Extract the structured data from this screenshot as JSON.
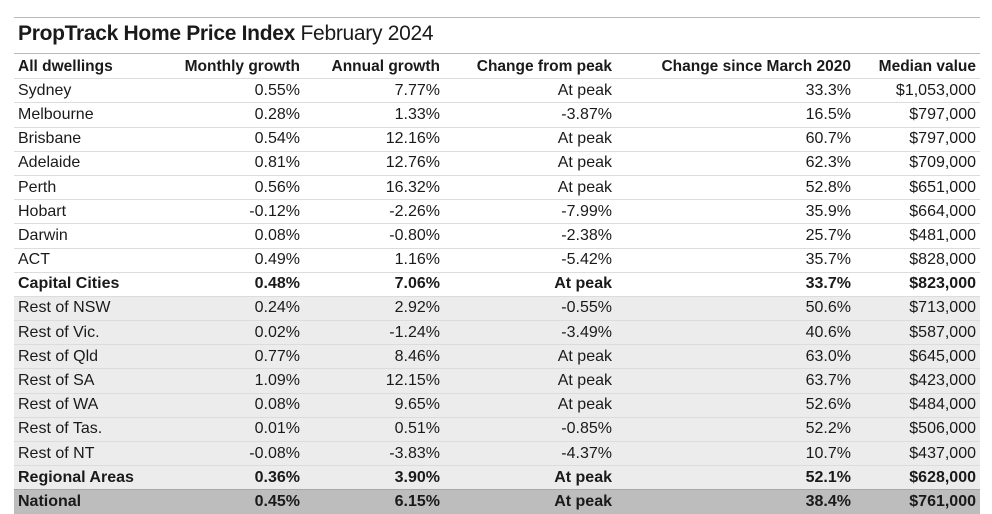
{
  "title": {
    "bold": "PropTrack Home Price Index",
    "light": "February 2024"
  },
  "headers": [
    "All dwellings",
    "Monthly growth",
    "Annual growth",
    "Change from peak",
    "Change since March 2020",
    "Median value"
  ],
  "rows": [
    {
      "name": "Sydney",
      "monthly": "0.55%",
      "annual": "7.77%",
      "peak": "At peak",
      "since2020": "33.3%",
      "median": "$1,053,000",
      "style": "normal"
    },
    {
      "name": "Melbourne",
      "monthly": "0.28%",
      "annual": "1.33%",
      "peak": "-3.87%",
      "since2020": "16.5%",
      "median": "$797,000",
      "style": "normal"
    },
    {
      "name": "Brisbane",
      "monthly": "0.54%",
      "annual": "12.16%",
      "peak": "At peak",
      "since2020": "60.7%",
      "median": "$797,000",
      "style": "normal"
    },
    {
      "name": "Adelaide",
      "monthly": "0.81%",
      "annual": "12.76%",
      "peak": "At peak",
      "since2020": "62.3%",
      "median": "$709,000",
      "style": "normal"
    },
    {
      "name": "Perth",
      "monthly": "0.56%",
      "annual": "16.32%",
      "peak": "At peak",
      "since2020": "52.8%",
      "median": "$651,000",
      "style": "normal"
    },
    {
      "name": "Hobart",
      "monthly": "-0.12%",
      "annual": "-2.26%",
      "peak": "-7.99%",
      "since2020": "35.9%",
      "median": "$664,000",
      "style": "normal"
    },
    {
      "name": "Darwin",
      "monthly": "0.08%",
      "annual": "-0.80%",
      "peak": "-2.38%",
      "since2020": "25.7%",
      "median": "$481,000",
      "style": "normal"
    },
    {
      "name": "ACT",
      "monthly": "0.49%",
      "annual": "1.16%",
      "peak": "-5.42%",
      "since2020": "35.7%",
      "median": "$828,000",
      "style": "normal"
    },
    {
      "name": "Capital Cities",
      "monthly": "0.48%",
      "annual": "7.06%",
      "peak": "At peak",
      "since2020": "33.7%",
      "median": "$823,000",
      "style": "bold"
    },
    {
      "name": "Rest of NSW",
      "monthly": "0.24%",
      "annual": "2.92%",
      "peak": "-0.55%",
      "since2020": "50.6%",
      "median": "$713,000",
      "style": "regional"
    },
    {
      "name": "Rest of Vic.",
      "monthly": "0.02%",
      "annual": "-1.24%",
      "peak": "-3.49%",
      "since2020": "40.6%",
      "median": "$587,000",
      "style": "regional"
    },
    {
      "name": "Rest of Qld",
      "monthly": "0.77%",
      "annual": "8.46%",
      "peak": "At peak",
      "since2020": "63.0%",
      "median": "$645,000",
      "style": "regional"
    },
    {
      "name": "Rest of SA",
      "monthly": "1.09%",
      "annual": "12.15%",
      "peak": "At peak",
      "since2020": "63.7%",
      "median": "$423,000",
      "style": "regional"
    },
    {
      "name": "Rest of WA",
      "monthly": "0.08%",
      "annual": "9.65%",
      "peak": "At peak",
      "since2020": "52.6%",
      "median": "$484,000",
      "style": "regional"
    },
    {
      "name": "Rest of Tas.",
      "monthly": "0.01%",
      "annual": "0.51%",
      "peak": "-0.85%",
      "since2020": "52.2%",
      "median": "$506,000",
      "style": "regional"
    },
    {
      "name": "Rest of NT",
      "monthly": "-0.08%",
      "annual": "-3.83%",
      "peak": "-4.37%",
      "since2020": "10.7%",
      "median": "$437,000",
      "style": "regional"
    },
    {
      "name": "Regional Areas",
      "monthly": "0.36%",
      "annual": "3.90%",
      "peak": "At peak",
      "since2020": "52.1%",
      "median": "$628,000",
      "style": "regional-bold"
    },
    {
      "name": "National",
      "monthly": "0.45%",
      "annual": "6.15%",
      "peak": "At peak",
      "since2020": "38.4%",
      "median": "$761,000",
      "style": "national"
    }
  ],
  "colors": {
    "regional_bg": "#ececec",
    "national_bg": "#bdbdbd",
    "rule": "#b9b9b9"
  }
}
